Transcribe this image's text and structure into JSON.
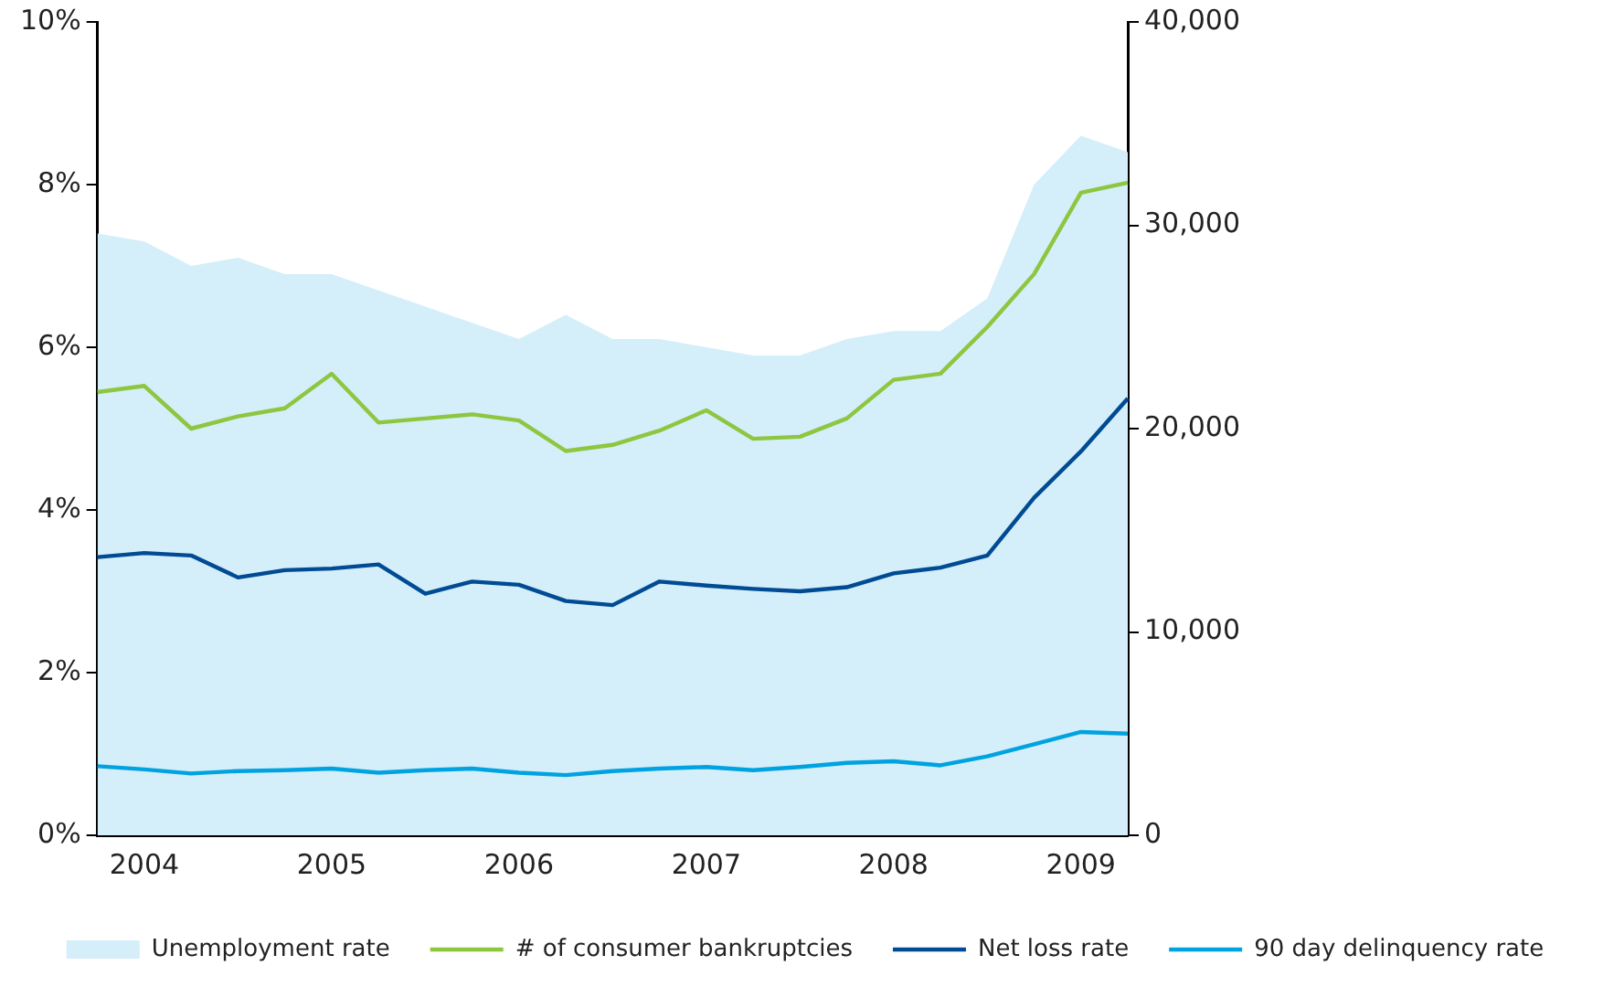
{
  "chart_data": {
    "type": "line",
    "categories": [
      null,
      "2004",
      null,
      null,
      null,
      "2005",
      null,
      null,
      null,
      "2006",
      null,
      null,
      null,
      "2007",
      null,
      null,
      null,
      "2008",
      null,
      null,
      null,
      "2009",
      null
    ],
    "series": [
      {
        "name": "Unemployment rate",
        "type": "area",
        "color": "#d4eefa",
        "values": [
          7.4,
          7.3,
          7.0,
          7.1,
          6.9,
          6.9,
          6.7,
          6.5,
          6.3,
          6.1,
          6.4,
          6.1,
          6.1,
          6.0,
          5.9,
          5.9,
          6.1,
          6.2,
          6.2,
          6.6,
          8.0,
          8.6,
          8.4
        ]
      },
      {
        "name": "# of consumer bankruptcies",
        "type": "line",
        "axis": "y2",
        "color": "#8dc63f",
        "values": [
          21800,
          22100,
          20000,
          20600,
          21000,
          22700,
          20300,
          20500,
          20700,
          20400,
          18900,
          19200,
          19900,
          20900,
          19500,
          19600,
          20500,
          22400,
          22700,
          25000,
          27600,
          31600,
          32100
        ]
      },
      {
        "name": "Net loss rate",
        "type": "line",
        "color": "#004b93",
        "values": [
          3.42,
          3.47,
          3.44,
          3.17,
          3.26,
          3.28,
          3.33,
          2.97,
          3.12,
          3.08,
          2.88,
          2.83,
          3.12,
          3.07,
          3.03,
          3.0,
          3.05,
          3.22,
          3.29,
          3.44,
          4.15,
          4.72,
          5.37
        ]
      },
      {
        "name": "90 day delinquency rate",
        "type": "line",
        "color": "#00a3e0",
        "values": [
          0.85,
          0.81,
          0.76,
          0.79,
          0.8,
          0.82,
          0.77,
          0.8,
          0.82,
          0.77,
          0.74,
          0.79,
          0.82,
          0.84,
          0.8,
          0.84,
          0.89,
          0.91,
          0.86,
          0.97,
          1.12,
          1.27,
          1.25
        ]
      }
    ],
    "ylim": [
      0,
      10
    ],
    "yticks": [
      {
        "value": 0,
        "label": "0%"
      },
      {
        "value": 2,
        "label": "2%"
      },
      {
        "value": 4,
        "label": "4%"
      },
      {
        "value": 6,
        "label": "6%"
      },
      {
        "value": 8,
        "label": "8%"
      },
      {
        "value": 10,
        "label": "10%"
      }
    ],
    "y2lim": [
      0,
      40000
    ],
    "y2ticks": [
      {
        "value": 0,
        "label": "0"
      },
      {
        "value": 10000,
        "label": "10,000"
      },
      {
        "value": 20000,
        "label": "20,000"
      },
      {
        "value": 30000,
        "label": "30,000"
      },
      {
        "value": 40000,
        "label": "40,000"
      }
    ],
    "grid": false,
    "legend": "bottom",
    "marker": "none",
    "line_style": "solid"
  }
}
